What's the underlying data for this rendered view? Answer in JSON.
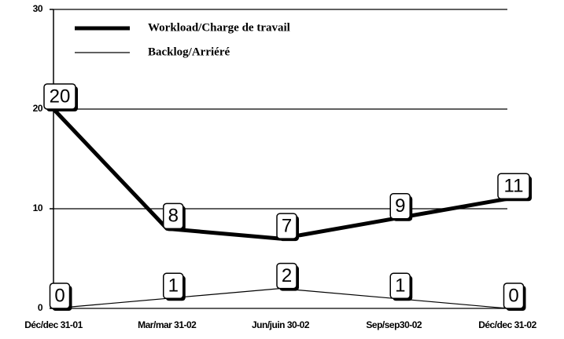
{
  "chart_data": {
    "type": "line",
    "categories": [
      "Déc/dec 31-01",
      "Mar/mar 31-02",
      "Jun/juin 30-02",
      "Sep/sep30-02",
      "Déc/dec 31-02"
    ],
    "series": [
      {
        "name": "Workload/Charge de travail",
        "color": "#000000",
        "width": 5,
        "values": [
          20,
          8,
          7,
          9,
          11
        ]
      },
      {
        "name": "Backlog/Arriéré",
        "color": "#000000",
        "width": 1.2,
        "values": [
          0,
          1,
          2,
          1,
          0
        ]
      }
    ],
    "ylim": [
      0,
      30
    ],
    "yticks": [
      0,
      10,
      20,
      30
    ],
    "grid": true,
    "legend": "top-left",
    "data_labels": true
  }
}
